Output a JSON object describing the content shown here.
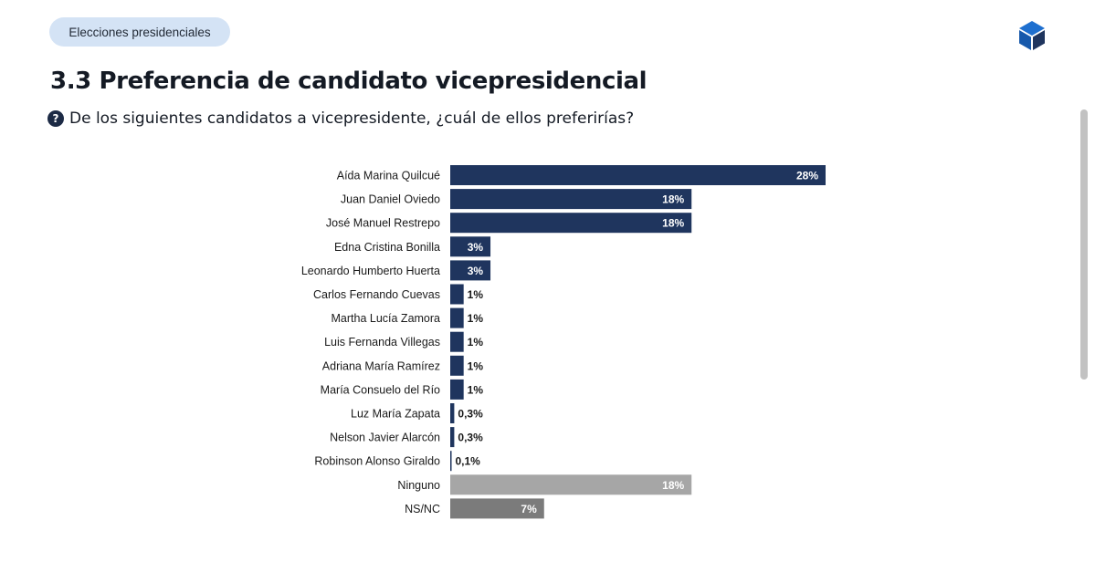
{
  "header": {
    "tag_label": "Elecciones presidenciales",
    "logo_icon": "cube-logo-icon"
  },
  "colors": {
    "candidate": "#1f355e",
    "ninguno": "#a6a6a6",
    "nsnc": "#7b7b7b",
    "pill_bg": "#d4e3f5"
  },
  "chart_data": {
    "type": "bar",
    "orientation": "horizontal",
    "title": "3.3 Preferencia de candidato vicepresidencial",
    "subtitle": "De los siguientes candidatos a vicepresidente, ¿cuál de ellos preferirías?",
    "categories": [
      "Aída Marina Quilcué",
      "Juan Daniel Oviedo",
      "José Manuel Restrepo",
      "Edna Cristina Bonilla",
      "Leonardo Humberto Huerta",
      "Carlos Fernando Cuevas",
      "Martha Lucía Zamora",
      "Luis Fernanda Villegas",
      "Adriana María Ramírez",
      "María Consuelo del Río",
      "Luz María Zapata",
      "Nelson Javier Alarcón",
      "Robinson Alonso Giraldo",
      "Ninguno",
      "NS/NC"
    ],
    "values": [
      28,
      18,
      18,
      3,
      3,
      1,
      1,
      1,
      1,
      1,
      0.3,
      0.3,
      0.1,
      18,
      7
    ],
    "labels": [
      "28%",
      "18%",
      "18%",
      "3%",
      "3%",
      "1%",
      "1%",
      "1%",
      "1%",
      "1%",
      "0,3%",
      "0,3%",
      "0,1%",
      "18%",
      "7%"
    ],
    "xlabel": "",
    "ylabel": "",
    "xlim": [
      0,
      28
    ],
    "grid": false,
    "legend": "none"
  }
}
